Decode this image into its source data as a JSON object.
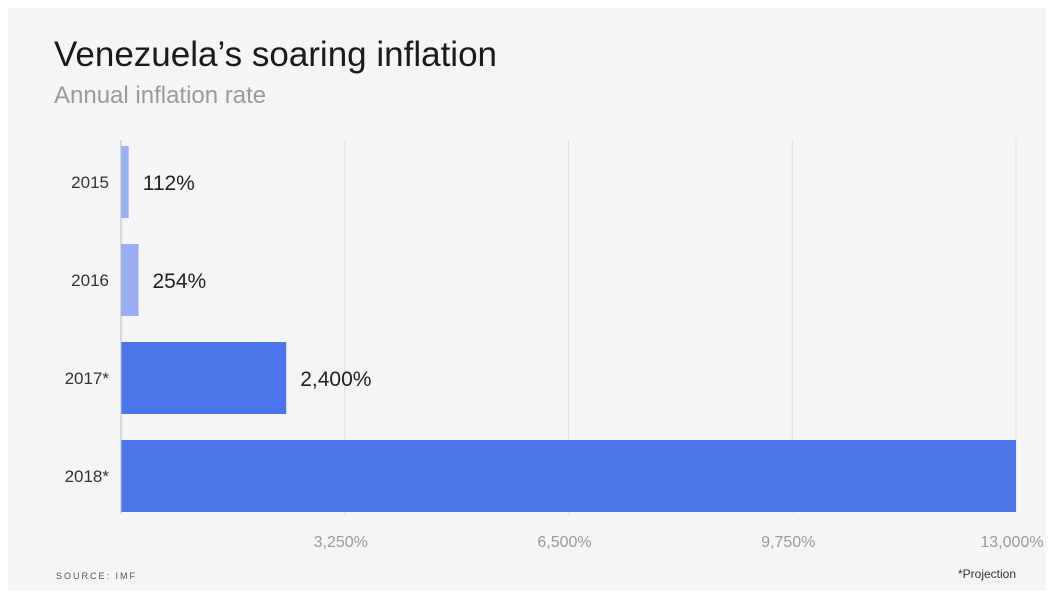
{
  "chart_data": {
    "type": "bar",
    "orientation": "horizontal",
    "title": "Venezuela’s soaring inflation",
    "subtitle": "Annual inflation rate",
    "categories": [
      "2015",
      "2016",
      "2017*",
      "2018*"
    ],
    "values": [
      112,
      254,
      2400,
      13000
    ],
    "value_labels": [
      "112%",
      "254%",
      "2,400%",
      ""
    ],
    "xlim": [
      0,
      13000
    ],
    "xticks": [
      3250,
      6500,
      9750,
      13000
    ],
    "xtick_labels": [
      "3,250%",
      "6,500%",
      "9,750%",
      "13,000%"
    ],
    "grid": true,
    "colors": {
      "actual": "#9aaef2",
      "projection": "#4a75eb",
      "grid": "#dedede",
      "axis": "#bbbbbb"
    },
    "bar_kinds": [
      "actual",
      "actual",
      "projection",
      "projection"
    ]
  },
  "source": "SOURCE: IMF",
  "footnote": "*Projection"
}
